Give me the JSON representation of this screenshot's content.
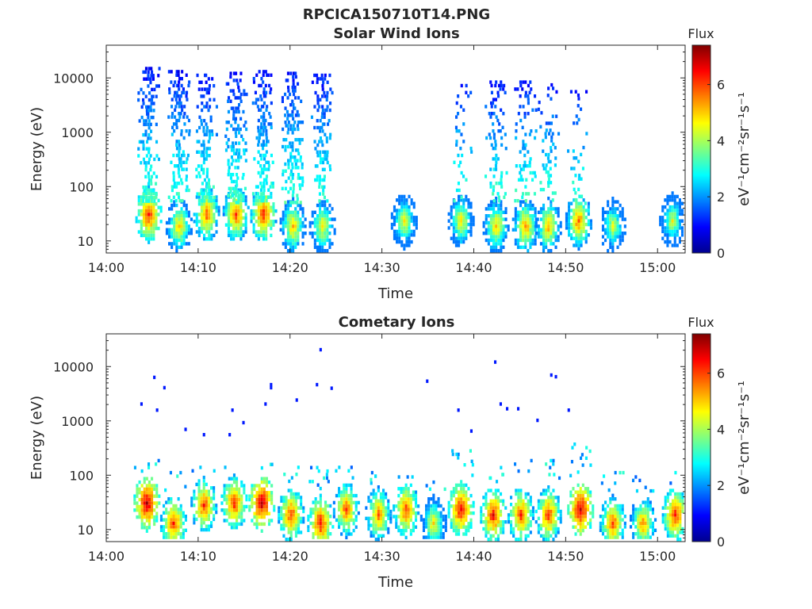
{
  "figure": {
    "main_title": "RPCICA150710T14.PNG",
    "xlabel": "Time",
    "ylabel": "Energy (eV)",
    "colorbar_title": "Flux"
  },
  "chart_data": [
    {
      "type": "heatmap",
      "title": "Solar Wind Ions",
      "xlabel": "Time",
      "ylabel": "Energy (eV)",
      "x_ticks": [
        "14:00",
        "14:10",
        "14:20",
        "14:30",
        "14:40",
        "14:50",
        "15:00"
      ],
      "x_range": [
        "14:00",
        "15:03"
      ],
      "y_scale": "log",
      "y_ticks": [
        10,
        100,
        1000,
        10000
      ],
      "y_range": [
        6,
        40000
      ],
      "colorbar": {
        "title": "Flux",
        "label": "eV⁻¹cm⁻²sr⁻¹s⁻¹",
        "ticks": [
          0,
          2,
          4,
          6
        ],
        "range": [
          0,
          7.4
        ],
        "colormap": "jet"
      },
      "grid": false,
      "bursts": [
        {
          "t": 4.5,
          "e_peak": 33,
          "peak": 6.4,
          "hi": 16000,
          "density": 0.55
        },
        {
          "t": 7.8,
          "e_peak": 20,
          "peak": 5.2,
          "hi": 14000,
          "density": 0.6
        },
        {
          "t": 10.8,
          "e_peak": 33,
          "peak": 5.9,
          "hi": 12000,
          "density": 0.6
        },
        {
          "t": 14.0,
          "e_peak": 33,
          "peak": 6.0,
          "hi": 13000,
          "density": 0.6
        },
        {
          "t": 17.0,
          "e_peak": 33,
          "peak": 6.3,
          "hi": 14000,
          "density": 0.6
        },
        {
          "t": 20.2,
          "e_peak": 20,
          "peak": 5.3,
          "hi": 13000,
          "density": 0.62
        },
        {
          "t": 23.4,
          "e_peak": 20,
          "peak": 5.0,
          "hi": 12000,
          "density": 0.55
        },
        {
          "t": 32.3,
          "e_peak": 25,
          "peak": 4.8,
          "hi": 0,
          "density": 0
        },
        {
          "t": 38.5,
          "e_peak": 25,
          "peak": 5.0,
          "hi": 9000,
          "density": 0.18
        },
        {
          "t": 42.3,
          "e_peak": 20,
          "peak": 5.2,
          "hi": 9000,
          "density": 0.4
        },
        {
          "t": 45.5,
          "e_peak": 20,
          "peak": 5.5,
          "hi": 9000,
          "density": 0.4
        },
        {
          "t": 48.0,
          "e_peak": 20,
          "peak": 5.4,
          "hi": 8000,
          "density": 0.35
        },
        {
          "t": 51.3,
          "e_peak": 25,
          "peak": 5.8,
          "hi": 6000,
          "density": 0.25
        },
        {
          "t": 55.0,
          "e_peak": 20,
          "peak": 4.6,
          "hi": 0,
          "density": 0
        },
        {
          "t": 61.5,
          "e_peak": 25,
          "peak": 4.6,
          "hi": 0,
          "density": 0
        }
      ]
    },
    {
      "type": "heatmap",
      "title": "Cometary Ions",
      "xlabel": "Time",
      "ylabel": "Energy (eV)",
      "x_ticks": [
        "14:00",
        "14:10",
        "14:20",
        "14:30",
        "14:40",
        "14:50",
        "15:00"
      ],
      "x_range": [
        "14:00",
        "15:03"
      ],
      "y_scale": "log",
      "y_ticks": [
        10,
        100,
        1000,
        10000
      ],
      "y_range": [
        6,
        40000
      ],
      "colorbar": {
        "title": "Flux",
        "label": "eV⁻¹cm⁻²sr⁻¹s⁻¹",
        "ticks": [
          0,
          2,
          4,
          6
        ],
        "range": [
          0,
          7.4
        ],
        "colormap": "jet"
      },
      "grid": false,
      "bursts": [
        {
          "t": 4.3,
          "e_peak": 33,
          "peak": 7.0,
          "hi": 200
        },
        {
          "t": 7.2,
          "e_peak": 14,
          "peak": 6.2,
          "hi": 120
        },
        {
          "t": 10.5,
          "e_peak": 30,
          "peak": 6.2,
          "hi": 150
        },
        {
          "t": 13.8,
          "e_peak": 33,
          "peak": 6.3,
          "hi": 150
        },
        {
          "t": 16.8,
          "e_peak": 33,
          "peak": 7.0,
          "hi": 170
        },
        {
          "t": 20.0,
          "e_peak": 20,
          "peak": 6.2,
          "hi": 150
        },
        {
          "t": 23.2,
          "e_peak": 14,
          "peak": 6.5,
          "hi": 200
        },
        {
          "t": 26.0,
          "e_peak": 25,
          "peak": 6.0,
          "hi": 150
        },
        {
          "t": 29.5,
          "e_peak": 20,
          "peak": 5.8,
          "hi": 120
        },
        {
          "t": 32.5,
          "e_peak": 25,
          "peak": 6.2,
          "hi": 100
        },
        {
          "t": 35.5,
          "e_peak": 14,
          "peak": 5.0,
          "hi": 80
        },
        {
          "t": 38.5,
          "e_peak": 25,
          "peak": 6.6,
          "hi": 350
        },
        {
          "t": 42.0,
          "e_peak": 20,
          "peak": 6.5,
          "hi": 200
        },
        {
          "t": 45.0,
          "e_peak": 20,
          "peak": 6.2,
          "hi": 200
        },
        {
          "t": 48.0,
          "e_peak": 20,
          "peak": 6.2,
          "hi": 200
        },
        {
          "t": 51.5,
          "e_peak": 25,
          "peak": 7.0,
          "hi": 400
        },
        {
          "t": 55.0,
          "e_peak": 14,
          "peak": 6.0,
          "hi": 120
        },
        {
          "t": 58.3,
          "e_peak": 14,
          "peak": 5.6,
          "hi": 100
        },
        {
          "t": 61.8,
          "e_peak": 20,
          "peak": 6.3,
          "hi": 120
        }
      ],
      "high_energy_dots": [
        {
          "t": 3.7,
          "e": 2200
        },
        {
          "t": 5.1,
          "e": 6800
        },
        {
          "t": 5.4,
          "e": 1700
        },
        {
          "t": 6.2,
          "e": 4400
        },
        {
          "t": 8.5,
          "e": 750
        },
        {
          "t": 10.5,
          "e": 600
        },
        {
          "t": 13.3,
          "e": 600
        },
        {
          "t": 13.6,
          "e": 1700
        },
        {
          "t": 14.8,
          "e": 1000
        },
        {
          "t": 17.2,
          "e": 2200
        },
        {
          "t": 17.8,
          "e": 4400
        },
        {
          "t": 17.8,
          "e": 5000
        },
        {
          "t": 20.6,
          "e": 2600
        },
        {
          "t": 23.2,
          "e": 22000
        },
        {
          "t": 22.8,
          "e": 5000
        },
        {
          "t": 24.4,
          "e": 4300
        },
        {
          "t": 34.8,
          "e": 5800
        },
        {
          "t": 38.2,
          "e": 1700
        },
        {
          "t": 39.6,
          "e": 700
        },
        {
          "t": 42.2,
          "e": 13000
        },
        {
          "t": 42.8,
          "e": 2200
        },
        {
          "t": 43.5,
          "e": 1800
        },
        {
          "t": 44.7,
          "e": 1800
        },
        {
          "t": 46.8,
          "e": 1100
        },
        {
          "t": 48.3,
          "e": 7500
        },
        {
          "t": 48.8,
          "e": 7000
        },
        {
          "t": 50.2,
          "e": 1700
        }
      ]
    }
  ]
}
